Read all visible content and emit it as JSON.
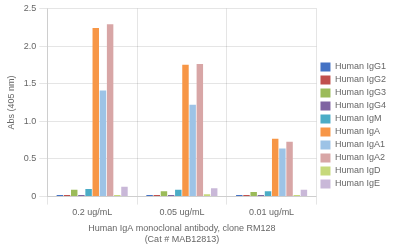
{
  "chart_data": {
    "type": "bar",
    "categories": [
      "0.2 ug/mL",
      "0.05 ug/mL",
      "0.01 ug/mL"
    ],
    "series": [
      {
        "name": "Human IgG1",
        "color": "#4472C4",
        "values": [
          0.02,
          0.02,
          0.02
        ]
      },
      {
        "name": "Human IgG2",
        "color": "#C0504D",
        "values": [
          0.02,
          0.02,
          0.02
        ]
      },
      {
        "name": "Human IgG3",
        "color": "#9BBB59",
        "values": [
          0.09,
          0.07,
          0.06
        ]
      },
      {
        "name": "Human IgG4",
        "color": "#8064A2",
        "values": [
          0.02,
          0.02,
          0.02
        ]
      },
      {
        "name": "Human IgM",
        "color": "#4BACC6",
        "values": [
          0.1,
          0.09,
          0.07
        ]
      },
      {
        "name": "Human IgA",
        "color": "#F79646",
        "values": [
          2.24,
          1.75,
          0.77
        ]
      },
      {
        "name": "Human IgA1",
        "color": "#9DC3E6",
        "values": [
          1.41,
          1.22,
          0.64
        ]
      },
      {
        "name": "Human IgA2",
        "color": "#D8A6A6",
        "values": [
          2.29,
          1.76,
          0.73
        ]
      },
      {
        "name": "Human IgD",
        "color": "#C6D97B",
        "values": [
          0.02,
          0.03,
          0.02
        ]
      },
      {
        "name": "Human IgE",
        "color": "#C9B8D8",
        "values": [
          0.13,
          0.11,
          0.09
        ]
      }
    ],
    "xlabel": "Human IgA monoclonal antibody, clone RM128\n(Cat # MAB12813)",
    "ylabel": "Abs (405 nm)",
    "ylim": [
      0,
      2.5
    ],
    "yticks": [
      0,
      0.5,
      {
        "value": 1,
        "label": "1.0"
      },
      1.5,
      {
        "value": 2,
        "label": "2.0"
      },
      2.5
    ],
    "grid": true,
    "legend": "right"
  }
}
